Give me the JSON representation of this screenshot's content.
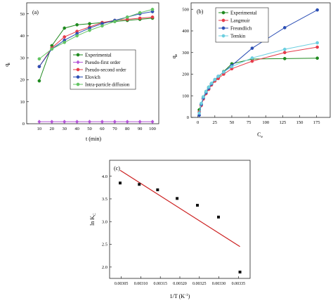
{
  "chart_data": [
    {
      "id": "a",
      "type": "line",
      "panel_label": "(a)",
      "xlabel": "t (min)",
      "ylabel": "q",
      "ylabel_sub": "t",
      "xlim": [
        0,
        105
      ],
      "ylim": [
        0,
        55
      ],
      "xticks": [
        10,
        20,
        30,
        40,
        50,
        60,
        70,
        80,
        90,
        100
      ],
      "yticks": [
        0,
        10,
        20,
        30,
        40,
        50
      ],
      "grid": false,
      "legend_position": "center-right",
      "x": [
        10,
        20,
        30,
        40,
        50,
        60,
        70,
        80,
        90,
        100
      ],
      "series": [
        {
          "name": "Experimental",
          "color": "#1f8a1f",
          "marker": "circle",
          "values": [
            19.5,
            35.5,
            43.5,
            45,
            45.5,
            46,
            46.5,
            47,
            47.5,
            48
          ]
        },
        {
          "name": "Pseudo-first order",
          "color": "#b455d8",
          "marker": "diamond",
          "values": [
            0.9,
            0.9,
            0.9,
            0.9,
            0.9,
            0.9,
            0.9,
            0.9,
            0.9,
            0.9
          ]
        },
        {
          "name": "Pseudo-second order",
          "color": "#e63b4a",
          "marker": "circle",
          "values": [
            26,
            34.5,
            39.5,
            42,
            44,
            46,
            47,
            47.5,
            48,
            48.5
          ]
        },
        {
          "name": "Elovich",
          "color": "#2c4fb5",
          "marker": "circle",
          "values": [
            26,
            34,
            38,
            41,
            43.5,
            45.5,
            47,
            48.5,
            50,
            51
          ]
        },
        {
          "name": "Intra-particle diffusion",
          "color": "#63c463",
          "marker": "circle",
          "values": [
            29.5,
            34,
            37,
            40,
            42.5,
            44.5,
            46.5,
            48.5,
            50.5,
            52
          ]
        }
      ]
    },
    {
      "id": "b",
      "type": "line",
      "panel_label": "(b)",
      "xlabel": "C",
      "xlabel_sub": "e",
      "ylabel": "q",
      "ylabel_sub": "e",
      "xlim": [
        -10,
        195
      ],
      "ylim": [
        0,
        530
      ],
      "xticks": [
        0,
        25,
        50,
        75,
        100,
        125,
        150,
        175
      ],
      "yticks": [
        0,
        100,
        200,
        300,
        400,
        500
      ],
      "grid": false,
      "legend_position": "top-left",
      "series": [
        {
          "name": "Experimental",
          "color": "#1f8a1f",
          "marker": "circle",
          "x": [
            2,
            5,
            8,
            12,
            16,
            20,
            25,
            30,
            38,
            50,
            80,
            128,
            176
          ],
          "values": [
            35,
            62,
            95,
            120,
            140,
            155,
            170,
            185,
            212,
            248,
            270,
            272,
            274
          ]
        },
        {
          "name": "Langmuir",
          "color": "#e63b4a",
          "marker": "circle",
          "x": [
            2,
            5,
            8,
            12,
            16,
            20,
            25,
            30,
            38,
            50,
            80,
            128,
            176
          ],
          "values": [
            25,
            55,
            85,
            110,
            130,
            150,
            168,
            180,
            200,
            225,
            260,
            300,
            325
          ]
        },
        {
          "name": "Freundlich",
          "color": "#2c4fb5",
          "marker": "circle",
          "x": [
            2,
            5,
            8,
            12,
            16,
            20,
            25,
            30,
            38,
            50,
            80,
            128,
            176
          ],
          "values": [
            10,
            60,
            90,
            115,
            135,
            155,
            175,
            190,
            210,
            240,
            320,
            415,
            497
          ]
        },
        {
          "name": "Temkin",
          "color": "#6ccfe0",
          "marker": "circle",
          "x": [
            2,
            5,
            8,
            12,
            16,
            20,
            25,
            30,
            38,
            50,
            80,
            128,
            176
          ],
          "values": [
            20,
            65,
            95,
            120,
            140,
            158,
            175,
            190,
            210,
            235,
            275,
            315,
            345
          ]
        }
      ]
    },
    {
      "id": "c",
      "type": "scatter",
      "panel_label": "(c)",
      "xlabel": "1/T (K",
      "xlabel_sup": "-1",
      "xlabel_end": ")",
      "ylabel": "ln K",
      "ylabel_sub": "C",
      "xlim": [
        0.00302,
        0.00338
      ],
      "ylim": [
        1.75,
        4.35
      ],
      "xticks": [
        "0.00305",
        "0.00310",
        "0.00315",
        "0.00320",
        "0.00325",
        "0.00330",
        "0.00335"
      ],
      "yticks": [
        "2.0",
        "2.5",
        "3.0",
        "3.5",
        "4.0"
      ],
      "grid": false,
      "points": {
        "color": "#111111",
        "x": [
          0.003047,
          0.003096,
          0.003143,
          0.003193,
          0.003245,
          0.003299,
          0.003354
        ],
        "y": [
          3.85,
          3.82,
          3.7,
          3.51,
          3.36,
          3.1,
          1.89
        ]
      },
      "fit_line": {
        "color": "#cc1f1f",
        "x": [
          0.003047,
          0.003354
        ],
        "y": [
          4.13,
          2.45
        ]
      }
    }
  ]
}
